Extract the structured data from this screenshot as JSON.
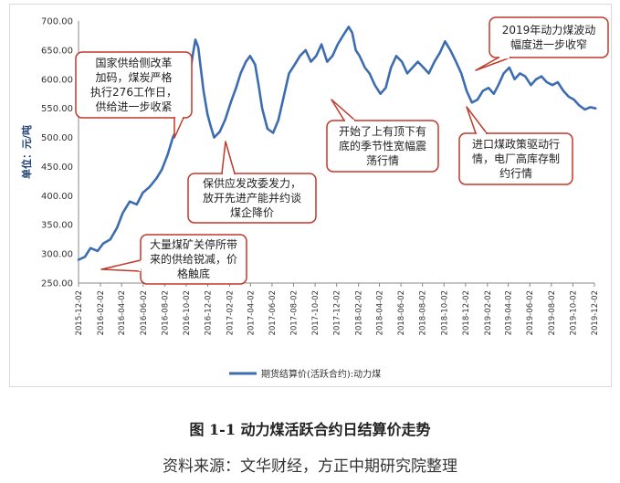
{
  "chart_data": {
    "type": "line",
    "title": "",
    "ylabel": "单位：元/吨",
    "xlabel": "",
    "ylim": [
      250,
      700
    ],
    "y_ticks": [
      "250.00",
      "300.00",
      "350.00",
      "400.00",
      "450.00",
      "500.00",
      "550.00",
      "600.00",
      "650.00",
      "700.00"
    ],
    "x_ticks": [
      "2015-12-02",
      "2016-02-02",
      "2016-04-02",
      "2016-06-02",
      "2016-08-02",
      "2016-10-02",
      "2016-12-02",
      "2017-02-02",
      "2017-04-02",
      "2017-06-02",
      "2017-08-02",
      "2017-10-02",
      "2017-12-02",
      "2018-02-02",
      "2018-04-02",
      "2018-06-02",
      "2018-08-02",
      "2018-10-02",
      "2018-12-02",
      "2019-02-02",
      "2019-04-02",
      "2019-06-02",
      "2019-08-02",
      "2019-10-02",
      "2019-12-02"
    ],
    "grid": false,
    "legend_position": "bottom",
    "series": [
      {
        "name": "期货结算价(活跃合约):动力煤",
        "color": "#3d6db0",
        "points": [
          [
            "2015-12-02",
            290
          ],
          [
            "2015-12-20",
            295
          ],
          [
            "2016-01-05",
            310
          ],
          [
            "2016-01-25",
            305
          ],
          [
            "2016-02-10",
            318
          ],
          [
            "2016-03-01",
            325
          ],
          [
            "2016-03-20",
            345
          ],
          [
            "2016-04-05",
            370
          ],
          [
            "2016-04-25",
            390
          ],
          [
            "2016-05-15",
            385
          ],
          [
            "2016-06-01",
            405
          ],
          [
            "2016-06-20",
            415
          ],
          [
            "2016-07-10",
            430
          ],
          [
            "2016-07-25",
            445
          ],
          [
            "2016-08-10",
            470
          ],
          [
            "2016-08-25",
            500
          ],
          [
            "2016-09-10",
            520
          ],
          [
            "2016-09-25",
            560
          ],
          [
            "2016-10-10",
            600
          ],
          [
            "2016-10-20",
            640
          ],
          [
            "2016-10-28",
            668
          ],
          [
            "2016-11-05",
            655
          ],
          [
            "2016-11-12",
            620
          ],
          [
            "2016-11-20",
            580
          ],
          [
            "2016-12-01",
            540
          ],
          [
            "2016-12-10",
            520
          ],
          [
            "2016-12-20",
            500
          ],
          [
            "2017-01-05",
            510
          ],
          [
            "2017-01-20",
            530
          ],
          [
            "2017-02-05",
            560
          ],
          [
            "2017-02-20",
            585
          ],
          [
            "2017-03-05",
            610
          ],
          [
            "2017-03-20",
            630
          ],
          [
            "2017-04-01",
            640
          ],
          [
            "2017-04-15",
            625
          ],
          [
            "2017-04-25",
            590
          ],
          [
            "2017-05-05",
            550
          ],
          [
            "2017-05-20",
            515
          ],
          [
            "2017-06-05",
            508
          ],
          [
            "2017-06-20",
            530
          ],
          [
            "2017-07-05",
            570
          ],
          [
            "2017-07-20",
            610
          ],
          [
            "2017-08-05",
            625
          ],
          [
            "2017-08-20",
            640
          ],
          [
            "2017-09-05",
            650
          ],
          [
            "2017-09-20",
            630
          ],
          [
            "2017-10-05",
            640
          ],
          [
            "2017-10-20",
            660
          ],
          [
            "2017-11-05",
            630
          ],
          [
            "2017-11-20",
            640
          ],
          [
            "2017-12-05",
            660
          ],
          [
            "2017-12-20",
            675
          ],
          [
            "2018-01-05",
            690
          ],
          [
            "2018-01-15",
            680
          ],
          [
            "2018-01-25",
            650
          ],
          [
            "2018-02-05",
            640
          ],
          [
            "2018-02-20",
            620
          ],
          [
            "2018-03-05",
            610
          ],
          [
            "2018-03-20",
            590
          ],
          [
            "2018-04-05",
            575
          ],
          [
            "2018-04-20",
            585
          ],
          [
            "2018-05-05",
            620
          ],
          [
            "2018-05-20",
            640
          ],
          [
            "2018-06-05",
            630
          ],
          [
            "2018-06-20",
            610
          ],
          [
            "2018-07-05",
            620
          ],
          [
            "2018-07-20",
            630
          ],
          [
            "2018-08-05",
            620
          ],
          [
            "2018-08-20",
            610
          ],
          [
            "2018-09-05",
            630
          ],
          [
            "2018-09-20",
            645
          ],
          [
            "2018-10-05",
            665
          ],
          [
            "2018-10-20",
            650
          ],
          [
            "2018-11-05",
            630
          ],
          [
            "2018-11-20",
            610
          ],
          [
            "2018-12-05",
            580
          ],
          [
            "2018-12-20",
            560
          ],
          [
            "2019-01-05",
            565
          ],
          [
            "2019-01-20",
            580
          ],
          [
            "2019-02-05",
            585
          ],
          [
            "2019-02-20",
            575
          ],
          [
            "2019-03-05",
            590
          ],
          [
            "2019-03-20",
            610
          ],
          [
            "2019-04-05",
            620
          ],
          [
            "2019-04-20",
            600
          ],
          [
            "2019-05-05",
            610
          ],
          [
            "2019-05-20",
            605
          ],
          [
            "2019-06-05",
            590
          ],
          [
            "2019-06-20",
            600
          ],
          [
            "2019-07-05",
            605
          ],
          [
            "2019-07-20",
            595
          ],
          [
            "2019-08-05",
            590
          ],
          [
            "2019-08-20",
            595
          ],
          [
            "2019-09-05",
            580
          ],
          [
            "2019-09-20",
            570
          ],
          [
            "2019-10-05",
            565
          ],
          [
            "2019-10-20",
            555
          ],
          [
            "2019-11-05",
            548
          ],
          [
            "2019-11-20",
            552
          ],
          [
            "2019-12-05",
            550
          ]
        ]
      }
    ],
    "annotations": [
      {
        "id": "a1",
        "lines": [
          "国家供给侧改革",
          "加码，煤炭严格",
          "执行276工作日，",
          "供给进一步收紧"
        ]
      },
      {
        "id": "a2",
        "lines": [
          "保供应发改委发力，",
          "放开先进产能并约谈",
          "煤企降价"
        ]
      },
      {
        "id": "a3",
        "lines": [
          "大量煤矿关停所带",
          "来的供给锐减，价",
          "格触底"
        ]
      },
      {
        "id": "a4",
        "lines": [
          "开始了上有顶下有",
          "底的季节性宽幅震",
          "荡行情"
        ]
      },
      {
        "id": "a5",
        "lines": [
          "进口煤政策驱动行",
          "情，电厂高库存制",
          "约行情"
        ]
      },
      {
        "id": "a6",
        "lines": [
          "2019年动力煤波动",
          "幅度进一步收窄"
        ]
      }
    ]
  },
  "figure_caption": "图 1-1  动力煤活跃合约日结算价走势",
  "source_note": "资料来源：文华财经，方正中期研究院整理",
  "colors": {
    "line": "#3d6db0",
    "callout_border": "#c0392b"
  }
}
